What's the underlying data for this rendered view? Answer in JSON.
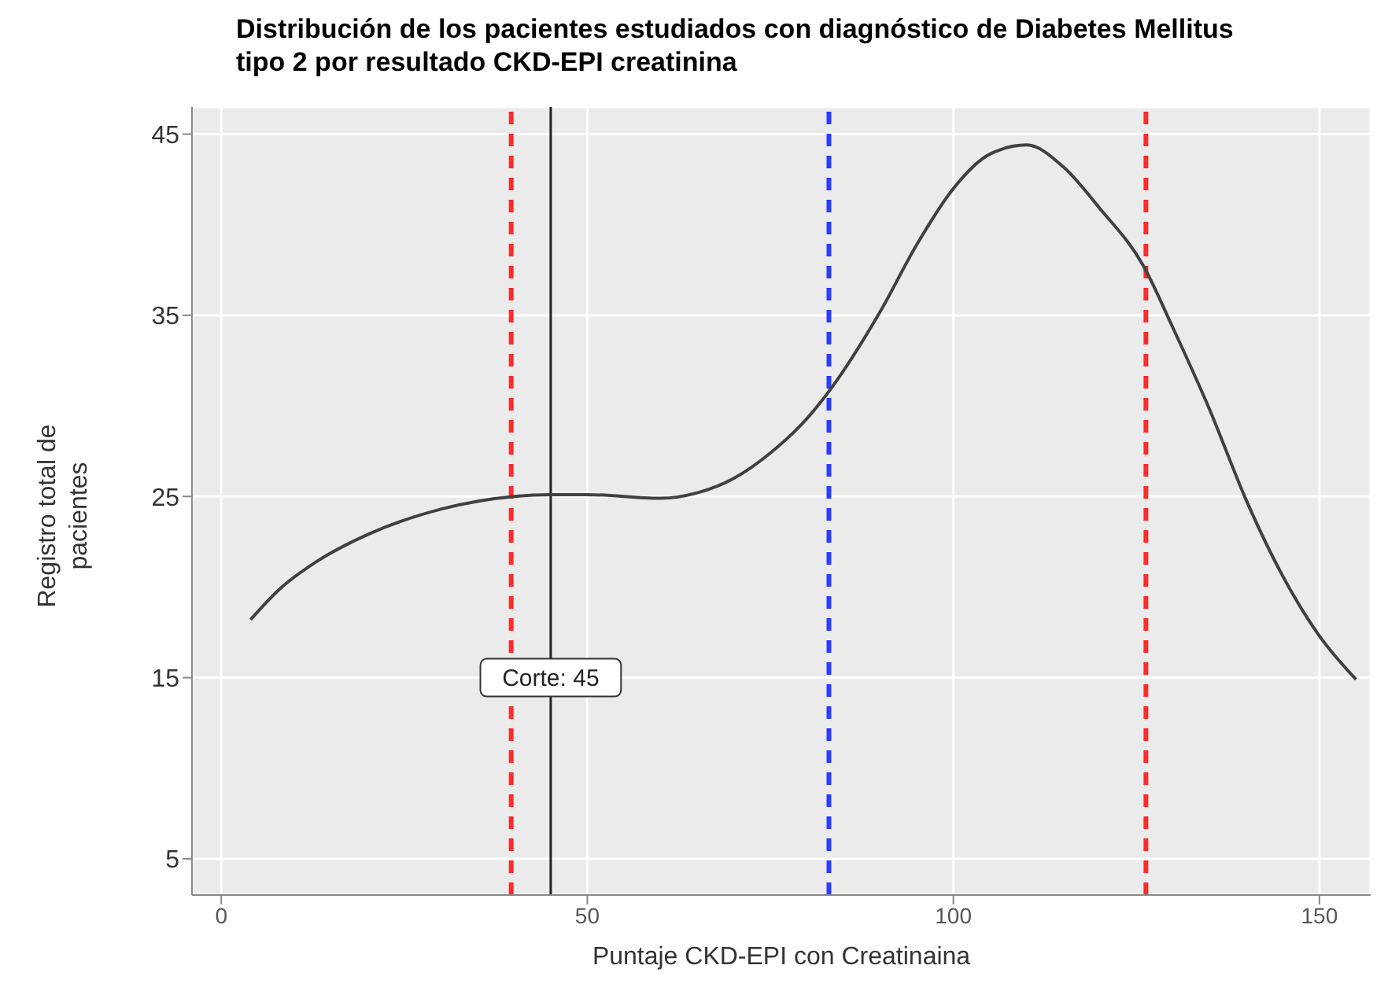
{
  "chart_data": {
    "type": "line",
    "title": "Distribución de los pacientes estudiados con diagnóstico de Diabetes Mellitus tipo 2 por resultado CKD-EPI creatinina",
    "xlabel": "Puntaje CKD-EPI con Creatinaina",
    "ylabel": "Registro total de pacientes",
    "x": [
      4,
      8,
      13,
      20,
      30,
      40,
      45,
      50,
      60,
      65,
      70,
      75,
      80,
      83,
      90,
      95,
      100,
      105,
      110,
      115,
      120,
      126,
      130,
      135,
      140,
      145,
      150,
      155
    ],
    "series": [
      {
        "color": "#404040",
        "values": [
          18.2,
          19.9,
          21.4,
          22.9,
          24.3,
          25,
          25.1,
          25.1,
          24.9,
          25.2,
          26,
          27.4,
          29.3,
          30.8,
          35.2,
          38.9,
          42,
          43.9,
          44.4,
          43.2,
          40.9,
          37.7,
          34.3,
          29.8,
          24.8,
          20.6,
          17.3,
          14.9
        ]
      }
    ],
    "xlim": [
      -4,
      157
    ],
    "ylim": [
      3,
      46.5
    ],
    "xticks": [
      0,
      50,
      100,
      150
    ],
    "yticks": [
      5,
      15,
      25,
      35,
      45
    ],
    "ref_lines": [
      {
        "axis": "x",
        "value": 39.6,
        "color": "#ff2a2a",
        "line_style": "dashed"
      },
      {
        "axis": "x",
        "value": 45,
        "color": "#222222",
        "line_style": "solid"
      },
      {
        "axis": "x",
        "value": 83,
        "color": "#2a3cff",
        "line_style": "dashed"
      },
      {
        "axis": "x",
        "value": 126.3,
        "color": "#ff2a2a",
        "line_style": "dashed"
      }
    ],
    "annotations": [
      {
        "text": "Corte: 45",
        "x": 45,
        "y": 15
      }
    ],
    "grid": true,
    "marker": "none",
    "line_style": "solid"
  }
}
